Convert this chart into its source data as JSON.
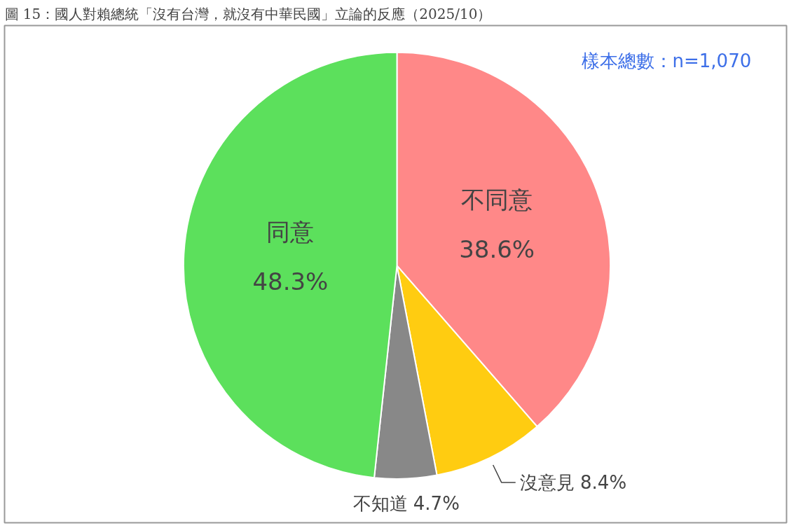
{
  "chart_data": {
    "type": "pie",
    "title": "圖 15：國人對賴總統「沒有台灣，就沒有中華民國」立論的反應（2025/10）",
    "categories": [
      "不同意",
      "沒意見",
      "不知道",
      "同意"
    ],
    "values": [
      38.6,
      8.4,
      4.7,
      48.3
    ],
    "value_labels": [
      "38.6%",
      "8.4%",
      "4.7%",
      "48.3%"
    ],
    "colors": [
      "#ff8888",
      "#ffcc11",
      "#888888",
      "#5ce05c"
    ],
    "annotations": [
      "樣本總數：n=1,070"
    ]
  }
}
